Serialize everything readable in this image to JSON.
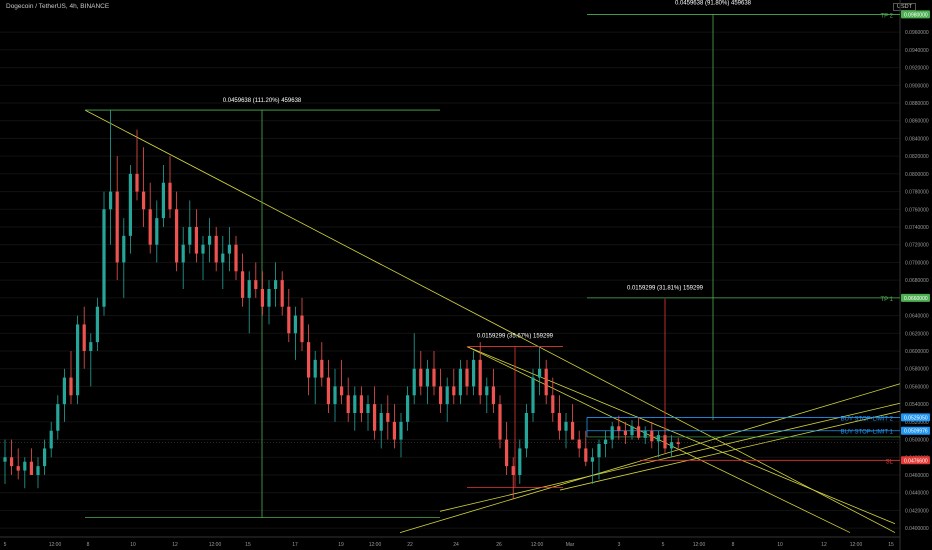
{
  "title": "Dogecoin / TetherUS, 4h, BINANCE",
  "currency": "USDT",
  "chart_data": {
    "type": "candlestick",
    "symbol": "Dogecoin / TetherUS, 4h, BINANCE",
    "ylim": [
      0.039,
      0.0985
    ],
    "y_ticks": [
      0.04,
      0.042,
      0.044,
      0.046,
      0.048,
      0.05,
      0.052,
      0.054,
      0.056,
      0.058,
      0.06,
      0.062,
      0.064,
      0.066,
      0.068,
      0.07,
      0.072,
      0.074,
      0.076,
      0.078,
      0.08,
      0.082,
      0.084,
      0.086,
      0.088,
      0.09,
      0.092,
      0.094,
      0.096
    ],
    "y_tick_labels": [
      "0.0400000",
      "0.0420000",
      "0.0440000",
      "0.0460000",
      "0.0480000",
      "0.0500000",
      "0.0520000",
      "0.0540000",
      "0.0560000",
      "0.0580000",
      "0.0600000",
      "0.0620000",
      "0.0640000",
      "0.0660000",
      "0.0680000",
      "0.0700000",
      "0.0720000",
      "0.0740000",
      "0.0760000",
      "0.0780000",
      "0.0800000",
      "0.0820000",
      "0.0840000",
      "0.0860000",
      "0.0880000",
      "0.0900000",
      "0.0920000",
      "0.0940000",
      "0.0960000"
    ],
    "x_tick_labels": [
      "5",
      "12:00",
      "8",
      "10",
      "12",
      "12:00",
      "15",
      "17",
      "19",
      "12:00",
      "22",
      "24",
      "26",
      "12:00",
      "Mar",
      "3",
      "5",
      "12:00",
      "8",
      "10",
      "12",
      "12:00",
      "15"
    ],
    "price_tags": [
      {
        "value": "0.0980000",
        "price": 0.098,
        "color": "#4caf50"
      },
      {
        "value": "0.0660000",
        "price": 0.066,
        "color": "#4caf50"
      },
      {
        "value": "0.0525050",
        "price": 0.0525,
        "color": "#2196f3"
      },
      {
        "value": "0.0509976",
        "price": 0.051,
        "color": "#2196f3"
      },
      {
        "value": "0.0476600",
        "price": 0.04766,
        "color": "#e53935"
      }
    ],
    "levels": [
      {
        "label": "TP 2",
        "price": 0.098,
        "color": "#4caf50"
      },
      {
        "label": "TP 1",
        "price": 0.066,
        "color": "#4caf50"
      },
      {
        "label": "BUY STOP-LIMIT 2",
        "price": 0.0525,
        "color": "#2196f3"
      },
      {
        "label": "BUY STOP-LIMIT 1",
        "price": 0.051,
        "color": "#2196f3"
      },
      {
        "label": "SL",
        "price": 0.04766,
        "color": "#e53935"
      }
    ],
    "measurements": [
      {
        "text": "0.0459638 (111.20%) 459638",
        "color": "#4caf50"
      },
      {
        "text": "0.0159299 (35.67%) 159299",
        "color": "#e53935"
      },
      {
        "text": "0.0159299 (31.81%) 159299",
        "color": "#e53935"
      },
      {
        "text": "0.0459638 (91.80%) 459638",
        "color": "#4caf50"
      }
    ],
    "candles": [
      {
        "i": 0,
        "o": 0.0475,
        "h": 0.05,
        "l": 0.045,
        "c": 0.048
      },
      {
        "i": 1,
        "o": 0.048,
        "h": 0.05,
        "l": 0.046,
        "c": 0.047
      },
      {
        "i": 2,
        "o": 0.047,
        "h": 0.049,
        "l": 0.0455,
        "c": 0.0465
      },
      {
        "i": 3,
        "o": 0.0465,
        "h": 0.048,
        "l": 0.0445,
        "c": 0.0475
      },
      {
        "i": 4,
        "o": 0.0475,
        "h": 0.049,
        "l": 0.046,
        "c": 0.046
      },
      {
        "i": 5,
        "o": 0.046,
        "h": 0.048,
        "l": 0.0445,
        "c": 0.047
      },
      {
        "i": 6,
        "o": 0.047,
        "h": 0.05,
        "l": 0.046,
        "c": 0.049
      },
      {
        "i": 7,
        "o": 0.049,
        "h": 0.052,
        "l": 0.048,
        "c": 0.051
      },
      {
        "i": 8,
        "o": 0.051,
        "h": 0.055,
        "l": 0.05,
        "c": 0.054
      },
      {
        "i": 9,
        "o": 0.054,
        "h": 0.058,
        "l": 0.052,
        "c": 0.057
      },
      {
        "i": 10,
        "o": 0.057,
        "h": 0.06,
        "l": 0.054,
        "c": 0.055
      },
      {
        "i": 11,
        "o": 0.055,
        "h": 0.064,
        "l": 0.054,
        "c": 0.063
      },
      {
        "i": 12,
        "o": 0.063,
        "h": 0.065,
        "l": 0.058,
        "c": 0.06
      },
      {
        "i": 13,
        "o": 0.06,
        "h": 0.062,
        "l": 0.056,
        "c": 0.061
      },
      {
        "i": 14,
        "o": 0.061,
        "h": 0.066,
        "l": 0.06,
        "c": 0.065
      },
      {
        "i": 15,
        "o": 0.065,
        "h": 0.078,
        "l": 0.064,
        "c": 0.076
      },
      {
        "i": 16,
        "o": 0.076,
        "h": 0.0872,
        "l": 0.072,
        "c": 0.078
      },
      {
        "i": 17,
        "o": 0.078,
        "h": 0.082,
        "l": 0.068,
        "c": 0.07
      },
      {
        "i": 18,
        "o": 0.07,
        "h": 0.075,
        "l": 0.066,
        "c": 0.073
      },
      {
        "i": 19,
        "o": 0.073,
        "h": 0.081,
        "l": 0.071,
        "c": 0.08
      },
      {
        "i": 20,
        "o": 0.08,
        "h": 0.085,
        "l": 0.077,
        "c": 0.078
      },
      {
        "i": 21,
        "o": 0.078,
        "h": 0.083,
        "l": 0.074,
        "c": 0.076
      },
      {
        "i": 22,
        "o": 0.076,
        "h": 0.079,
        "l": 0.071,
        "c": 0.072
      },
      {
        "i": 23,
        "o": 0.072,
        "h": 0.077,
        "l": 0.07,
        "c": 0.075
      },
      {
        "i": 24,
        "o": 0.075,
        "h": 0.081,
        "l": 0.074,
        "c": 0.079
      },
      {
        "i": 25,
        "o": 0.079,
        "h": 0.082,
        "l": 0.075,
        "c": 0.076
      },
      {
        "i": 26,
        "o": 0.076,
        "h": 0.078,
        "l": 0.069,
        "c": 0.07
      },
      {
        "i": 27,
        "o": 0.07,
        "h": 0.074,
        "l": 0.067,
        "c": 0.072
      },
      {
        "i": 28,
        "o": 0.072,
        "h": 0.077,
        "l": 0.071,
        "c": 0.074
      },
      {
        "i": 29,
        "o": 0.074,
        "h": 0.076,
        "l": 0.07,
        "c": 0.071
      },
      {
        "i": 30,
        "o": 0.071,
        "h": 0.073,
        "l": 0.068,
        "c": 0.072
      },
      {
        "i": 31,
        "o": 0.072,
        "h": 0.075,
        "l": 0.07,
        "c": 0.073
      },
      {
        "i": 32,
        "o": 0.073,
        "h": 0.074,
        "l": 0.069,
        "c": 0.07
      },
      {
        "i": 33,
        "o": 0.07,
        "h": 0.073,
        "l": 0.067,
        "c": 0.071
      },
      {
        "i": 34,
        "o": 0.071,
        "h": 0.074,
        "l": 0.069,
        "c": 0.072
      },
      {
        "i": 35,
        "o": 0.072,
        "h": 0.073,
        "l": 0.068,
        "c": 0.069
      },
      {
        "i": 36,
        "o": 0.069,
        "h": 0.071,
        "l": 0.065,
        "c": 0.066
      },
      {
        "i": 37,
        "o": 0.066,
        "h": 0.069,
        "l": 0.062,
        "c": 0.068
      },
      {
        "i": 38,
        "o": 0.068,
        "h": 0.07,
        "l": 0.066,
        "c": 0.067
      },
      {
        "i": 39,
        "o": 0.067,
        "h": 0.069,
        "l": 0.064,
        "c": 0.065
      },
      {
        "i": 40,
        "o": 0.065,
        "h": 0.068,
        "l": 0.063,
        "c": 0.067
      },
      {
        "i": 41,
        "o": 0.067,
        "h": 0.07,
        "l": 0.065,
        "c": 0.068
      },
      {
        "i": 42,
        "o": 0.068,
        "h": 0.069,
        "l": 0.064,
        "c": 0.065
      },
      {
        "i": 43,
        "o": 0.065,
        "h": 0.067,
        "l": 0.061,
        "c": 0.062
      },
      {
        "i": 44,
        "o": 0.062,
        "h": 0.065,
        "l": 0.059,
        "c": 0.064
      },
      {
        "i": 45,
        "o": 0.064,
        "h": 0.066,
        "l": 0.06,
        "c": 0.061
      },
      {
        "i": 46,
        "o": 0.061,
        "h": 0.063,
        "l": 0.055,
        "c": 0.057
      },
      {
        "i": 47,
        "o": 0.057,
        "h": 0.06,
        "l": 0.054,
        "c": 0.059
      },
      {
        "i": 48,
        "o": 0.059,
        "h": 0.061,
        "l": 0.056,
        "c": 0.057
      },
      {
        "i": 49,
        "o": 0.057,
        "h": 0.059,
        "l": 0.053,
        "c": 0.054
      },
      {
        "i": 50,
        "o": 0.054,
        "h": 0.058,
        "l": 0.052,
        "c": 0.056
      },
      {
        "i": 51,
        "o": 0.056,
        "h": 0.059,
        "l": 0.054,
        "c": 0.055
      },
      {
        "i": 52,
        "o": 0.055,
        "h": 0.057,
        "l": 0.052,
        "c": 0.053
      },
      {
        "i": 53,
        "o": 0.053,
        "h": 0.056,
        "l": 0.051,
        "c": 0.055
      },
      {
        "i": 54,
        "o": 0.055,
        "h": 0.056,
        "l": 0.052,
        "c": 0.053
      },
      {
        "i": 55,
        "o": 0.053,
        "h": 0.055,
        "l": 0.051,
        "c": 0.054
      },
      {
        "i": 56,
        "o": 0.054,
        "h": 0.056,
        "l": 0.05,
        "c": 0.051
      },
      {
        "i": 57,
        "o": 0.051,
        "h": 0.054,
        "l": 0.049,
        "c": 0.053
      },
      {
        "i": 58,
        "o": 0.053,
        "h": 0.055,
        "l": 0.05,
        "c": 0.052
      },
      {
        "i": 59,
        "o": 0.052,
        "h": 0.054,
        "l": 0.049,
        "c": 0.05
      },
      {
        "i": 60,
        "o": 0.05,
        "h": 0.053,
        "l": 0.048,
        "c": 0.052
      },
      {
        "i": 61,
        "o": 0.052,
        "h": 0.056,
        "l": 0.051,
        "c": 0.055
      },
      {
        "i": 62,
        "o": 0.055,
        "h": 0.062,
        "l": 0.054,
        "c": 0.058
      },
      {
        "i": 63,
        "o": 0.058,
        "h": 0.06,
        "l": 0.055,
        "c": 0.056
      },
      {
        "i": 64,
        "o": 0.056,
        "h": 0.059,
        "l": 0.054,
        "c": 0.058
      },
      {
        "i": 65,
        "o": 0.058,
        "h": 0.06,
        "l": 0.055,
        "c": 0.056
      },
      {
        "i": 66,
        "o": 0.056,
        "h": 0.058,
        "l": 0.053,
        "c": 0.054
      },
      {
        "i": 67,
        "o": 0.054,
        "h": 0.057,
        "l": 0.052,
        "c": 0.056
      },
      {
        "i": 68,
        "o": 0.056,
        "h": 0.058,
        "l": 0.054,
        "c": 0.055
      },
      {
        "i": 69,
        "o": 0.055,
        "h": 0.059,
        "l": 0.054,
        "c": 0.058
      },
      {
        "i": 70,
        "o": 0.058,
        "h": 0.059,
        "l": 0.055,
        "c": 0.056
      },
      {
        "i": 71,
        "o": 0.056,
        "h": 0.06,
        "l": 0.055,
        "c": 0.059
      },
      {
        "i": 72,
        "o": 0.059,
        "h": 0.061,
        "l": 0.054,
        "c": 0.055
      },
      {
        "i": 73,
        "o": 0.055,
        "h": 0.057,
        "l": 0.053,
        "c": 0.056
      },
      {
        "i": 74,
        "o": 0.056,
        "h": 0.058,
        "l": 0.053,
        "c": 0.054
      },
      {
        "i": 75,
        "o": 0.054,
        "h": 0.055,
        "l": 0.049,
        "c": 0.05
      },
      {
        "i": 76,
        "o": 0.05,
        "h": 0.052,
        "l": 0.046,
        "c": 0.047
      },
      {
        "i": 77,
        "o": 0.047,
        "h": 0.048,
        "l": 0.0433,
        "c": 0.046
      },
      {
        "i": 78,
        "o": 0.046,
        "h": 0.05,
        "l": 0.045,
        "c": 0.049
      },
      {
        "i": 79,
        "o": 0.049,
        "h": 0.054,
        "l": 0.048,
        "c": 0.053
      },
      {
        "i": 80,
        "o": 0.053,
        "h": 0.058,
        "l": 0.052,
        "c": 0.057
      },
      {
        "i": 81,
        "o": 0.057,
        "h": 0.0605,
        "l": 0.055,
        "c": 0.058
      },
      {
        "i": 82,
        "o": 0.058,
        "h": 0.059,
        "l": 0.054,
        "c": 0.055
      },
      {
        "i": 83,
        "o": 0.055,
        "h": 0.057,
        "l": 0.052,
        "c": 0.053
      },
      {
        "i": 84,
        "o": 0.053,
        "h": 0.055,
        "l": 0.05,
        "c": 0.051
      },
      {
        "i": 85,
        "o": 0.051,
        "h": 0.053,
        "l": 0.049,
        "c": 0.052
      },
      {
        "i": 86,
        "o": 0.052,
        "h": 0.054,
        "l": 0.05,
        "c": 0.05
      },
      {
        "i": 87,
        "o": 0.05,
        "h": 0.051,
        "l": 0.048,
        "c": 0.049
      },
      {
        "i": 88,
        "o": 0.049,
        "h": 0.051,
        "l": 0.047,
        "c": 0.0475
      },
      {
        "i": 89,
        "o": 0.0475,
        "h": 0.049,
        "l": 0.045,
        "c": 0.048
      },
      {
        "i": 90,
        "o": 0.048,
        "h": 0.05,
        "l": 0.0455,
        "c": 0.0495
      },
      {
        "i": 91,
        "o": 0.0495,
        "h": 0.051,
        "l": 0.048,
        "c": 0.05
      },
      {
        "i": 92,
        "o": 0.05,
        "h": 0.052,
        "l": 0.049,
        "c": 0.0515
      },
      {
        "i": 93,
        "o": 0.0515,
        "h": 0.0527,
        "l": 0.05,
        "c": 0.051
      },
      {
        "i": 94,
        "o": 0.051,
        "h": 0.052,
        "l": 0.0495,
        "c": 0.0505
      },
      {
        "i": 95,
        "o": 0.0505,
        "h": 0.0522,
        "l": 0.05,
        "c": 0.0515
      },
      {
        "i": 96,
        "o": 0.0515,
        "h": 0.0525,
        "l": 0.05,
        "c": 0.0502
      },
      {
        "i": 97,
        "o": 0.0502,
        "h": 0.0515,
        "l": 0.0495,
        "c": 0.051
      },
      {
        "i": 98,
        "o": 0.051,
        "h": 0.052,
        "l": 0.049,
        "c": 0.0498
      },
      {
        "i": 99,
        "o": 0.0498,
        "h": 0.051,
        "l": 0.048,
        "c": 0.0505
      },
      {
        "i": 100,
        "o": 0.0505,
        "h": 0.0512,
        "l": 0.0485,
        "c": 0.049
      },
      {
        "i": 101,
        "o": 0.049,
        "h": 0.0505,
        "l": 0.048,
        "c": 0.0497
      },
      {
        "i": 102,
        "o": 0.0497,
        "h": 0.0502,
        "l": 0.0488,
        "c": 0.0495
      }
    ]
  }
}
